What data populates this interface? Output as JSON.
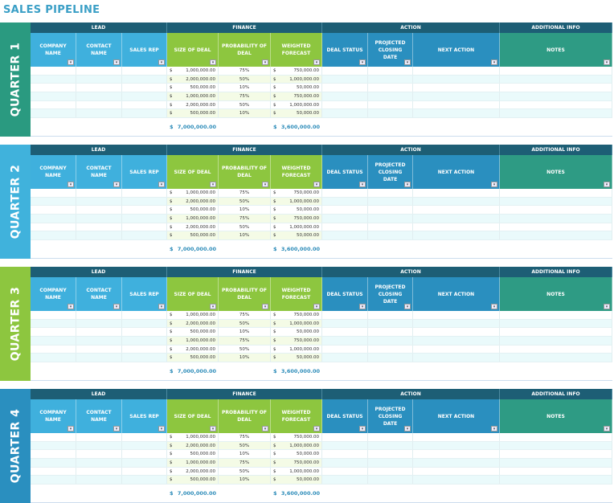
{
  "title": "SALES PIPELINE",
  "groups": [
    "LEAD",
    "FINANCE",
    "ACTION",
    "ADDITIONAL INFO"
  ],
  "columns": [
    "COMPANY NAME",
    "CONTACT NAME",
    "SALES REP",
    "SIZE OF DEAL",
    "PROBABILITY OF DEAL",
    "WEIGHTED FORECAST",
    "DEAL STATUS",
    "PROJECTED CLOSING DATE",
    "NEXT ACTION",
    "NOTES"
  ],
  "dropdown_icon": "▾",
  "currency": "$",
  "colors": {
    "group_header": "#1d5e75",
    "lead": "#3fb0dd",
    "finance": "#8dc63f",
    "action": "#2a8fbf",
    "notes": "#2e9b84"
  },
  "quarters": [
    {
      "label": "QUARTER 1",
      "color": "#2a9a80"
    },
    {
      "label": "QUARTER 2",
      "color": "#40b2dc"
    },
    {
      "label": "QUARTER 3",
      "color": "#8dc63f"
    },
    {
      "label": "QUARTER 4",
      "color": "#2a8fbf"
    }
  ],
  "rows": [
    {
      "size": "1,000,000.00",
      "prob": "75%",
      "weighted": "750,000.00"
    },
    {
      "size": "2,000,000.00",
      "prob": "50%",
      "weighted": "1,000,000.00"
    },
    {
      "size": "500,000.00",
      "prob": "10%",
      "weighted": "50,000.00"
    },
    {
      "size": "1,000,000.00",
      "prob": "75%",
      "weighted": "750,000.00"
    },
    {
      "size": "2,000,000.00",
      "prob": "50%",
      "weighted": "1,000,000.00"
    },
    {
      "size": "500,000.00",
      "prob": "10%",
      "weighted": "50,000.00"
    }
  ],
  "totals": {
    "size": "7,000,000.00",
    "weighted": "3,600,000.00"
  }
}
